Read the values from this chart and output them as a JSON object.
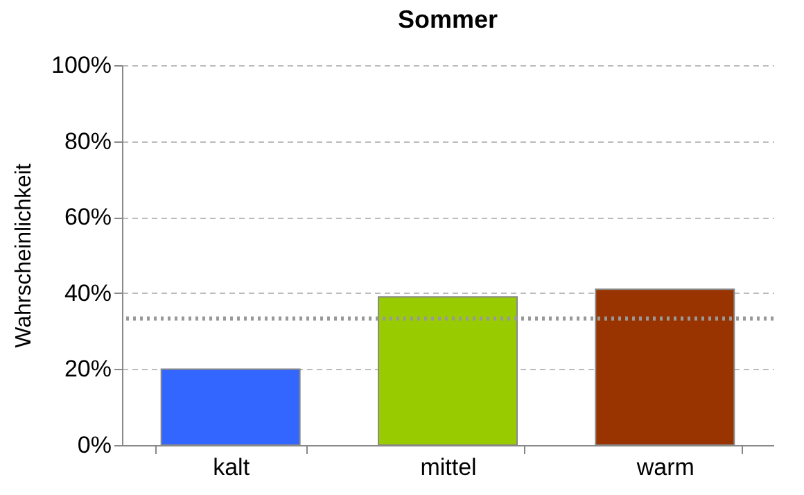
{
  "chart_data": {
    "type": "bar",
    "title": "Sommer",
    "ylabel": "Wahrscheinlichkeit",
    "categories": [
      "kalt",
      "mittel",
      "warm"
    ],
    "values": [
      20,
      39,
      41
    ],
    "colors": [
      "#3366ff",
      "#99cc00",
      "#993300"
    ],
    "ylim": [
      0,
      100
    ],
    "yticks": [
      {
        "value": 0,
        "label": "0%"
      },
      {
        "value": 20,
        "label": "20%"
      },
      {
        "value": 40,
        "label": "40%"
      },
      {
        "value": 60,
        "label": "60%"
      },
      {
        "value": 80,
        "label": "80%"
      },
      {
        "value": 100,
        "label": "100%"
      }
    ],
    "grid": "y",
    "ref_lines": [
      {
        "axis": "y",
        "value": 33.3,
        "color": "#999999",
        "line_style": "dotted"
      }
    ]
  }
}
